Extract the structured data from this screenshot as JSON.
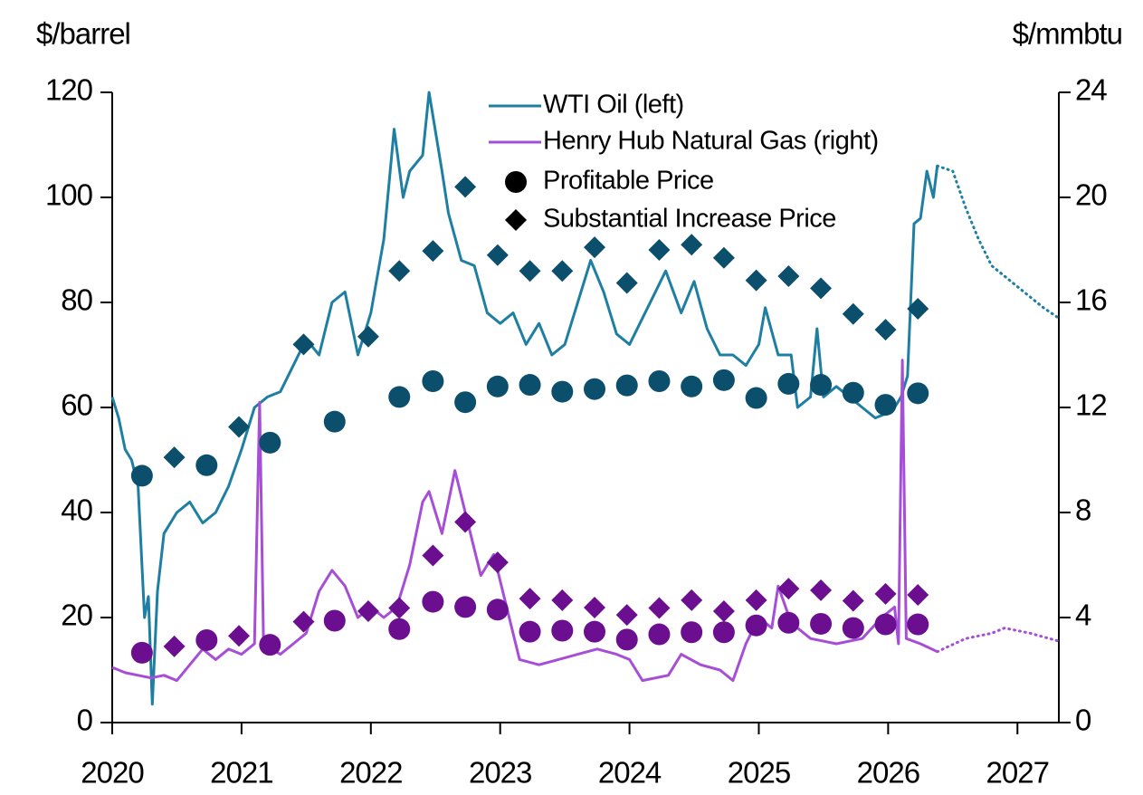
{
  "chart_data": {
    "type": "line",
    "y_label": "$/barrel",
    "y2_label": "$/mmbtu",
    "xlim": [
      2020,
      2027.32
    ],
    "xticks": [
      2020,
      2021,
      2022,
      2023,
      2024,
      2025,
      2026,
      2027
    ],
    "ylim": [
      0,
      120
    ],
    "yticks": [
      0,
      20,
      40,
      60,
      80,
      100,
      120
    ],
    "y2lim": [
      0,
      24
    ],
    "y2ticks": [
      0,
      4,
      8,
      12,
      16,
      20,
      24
    ],
    "grid": false,
    "legend": "top-center",
    "series": [
      {
        "name": "WTI Oil (left)",
        "color": "#1f7fa3",
        "axis": "y",
        "style": "solid",
        "x": [
          2020.0,
          2020.05,
          2020.1,
          2020.15,
          2020.2,
          2020.25,
          2020.28,
          2020.31,
          2020.35,
          2020.4,
          2020.5,
          2020.6,
          2020.7,
          2020.8,
          2020.9,
          2021.0,
          2021.1,
          2021.2,
          2021.3,
          2021.4,
          2021.5,
          2021.6,
          2021.7,
          2021.8,
          2021.9,
          2022.0,
          2022.1,
          2022.18,
          2022.25,
          2022.3,
          2022.4,
          2022.45,
          2022.55,
          2022.6,
          2022.7,
          2022.8,
          2022.9,
          2023.0,
          2023.1,
          2023.2,
          2023.3,
          2023.4,
          2023.5,
          2023.6,
          2023.7,
          2023.8,
          2023.9,
          2024.0,
          2024.1,
          2024.2,
          2024.28,
          2024.4,
          2024.5,
          2024.6,
          2024.7,
          2024.8,
          2024.9,
          2025.0,
          2025.05,
          2025.15,
          2025.25,
          2025.3,
          2025.4,
          2025.45,
          2025.5,
          2025.6,
          2025.7,
          2025.8,
          2025.9,
          2026.0,
          2026.05,
          2026.1,
          2026.15,
          2026.2,
          2026.25,
          2026.3,
          2026.35,
          2026.38
        ],
        "values": [
          62,
          58,
          52,
          50,
          45,
          20,
          24,
          3.5,
          25,
          36,
          40,
          42,
          38,
          40,
          45,
          52,
          60,
          62,
          63,
          68,
          73,
          70,
          80,
          82,
          70,
          78,
          92,
          113,
          100,
          105,
          108,
          120,
          105,
          97,
          88,
          87,
          78,
          76,
          78,
          72,
          76,
          70,
          72,
          80,
          88,
          82,
          74,
          72,
          77,
          82,
          86,
          78,
          84,
          75,
          70,
          70,
          68,
          72,
          79,
          70,
          70,
          60,
          62,
          75,
          62,
          64,
          62,
          60,
          58,
          59,
          60,
          62,
          66,
          95,
          96,
          105,
          100,
          106
        ]
      },
      {
        "name": "Henry Hub Natural Gas (right)",
        "color": "#a64fd6",
        "axis": "y2",
        "style": "solid",
        "x": [
          2020.0,
          2020.1,
          2020.2,
          2020.3,
          2020.4,
          2020.5,
          2020.6,
          2020.7,
          2020.8,
          2020.9,
          2021.0,
          2021.1,
          2021.14,
          2021.17,
          2021.3,
          2021.4,
          2021.5,
          2021.6,
          2021.7,
          2021.8,
          2021.9,
          2022.0,
          2022.1,
          2022.2,
          2022.3,
          2022.4,
          2022.45,
          2022.55,
          2022.65,
          2022.75,
          2022.85,
          2022.95,
          2023.05,
          2023.15,
          2023.3,
          2023.45,
          2023.6,
          2023.75,
          2023.9,
          2024.0,
          2024.1,
          2024.3,
          2024.4,
          2024.55,
          2024.7,
          2024.8,
          2024.9,
          2025.0,
          2025.1,
          2025.15,
          2025.25,
          2025.4,
          2025.6,
          2025.8,
          2025.95,
          2026.05,
          2026.08,
          2026.11,
          2026.14,
          2026.25,
          2026.38
        ],
        "values": [
          2.1,
          1.9,
          1.8,
          1.7,
          1.8,
          1.6,
          2.2,
          2.8,
          2.4,
          2.8,
          2.6,
          3.0,
          12.2,
          3.0,
          2.6,
          3.0,
          3.4,
          5.0,
          5.8,
          5.2,
          4.0,
          4.4,
          4.0,
          4.4,
          6.0,
          8.4,
          8.8,
          7.2,
          9.6,
          7.6,
          5.6,
          6.4,
          4.4,
          2.4,
          2.2,
          2.4,
          2.6,
          2.8,
          2.6,
          2.4,
          1.6,
          1.8,
          2.6,
          2.2,
          2.0,
          1.6,
          3.0,
          4.0,
          3.6,
          5.2,
          3.8,
          3.2,
          3.0,
          3.2,
          4.0,
          4.4,
          3.0,
          13.8,
          3.2,
          3.0,
          2.7
        ]
      },
      {
        "color": "#1f7fa3",
        "axis": "y",
        "style": "dotted",
        "x": [
          2026.38,
          2026.5,
          2026.6,
          2026.7,
          2026.8,
          2026.9,
          2027.0,
          2027.1,
          2027.2,
          2027.32
        ],
        "values": [
          106,
          105,
          98,
          92,
          87,
          85,
          83,
          81,
          79,
          77
        ]
      },
      {
        "color": "#a64fd6",
        "axis": "y2",
        "style": "dotted",
        "x": [
          2026.38,
          2026.6,
          2026.8,
          2026.9,
          2027.1,
          2027.32
        ],
        "values": [
          2.7,
          3.2,
          3.4,
          3.6,
          3.4,
          3.1
        ]
      }
    ],
    "markers": [
      {
        "name": "Profitable Price",
        "shape": "circle",
        "legend_color": "#000000",
        "groups": [
          {
            "axis": "y",
            "color": "#0b4f6c",
            "x": [
              2020.23,
              2020.73,
              2021.22,
              2021.72,
              2022.22,
              2022.48,
              2022.73,
              2022.98,
              2023.23,
              2023.48,
              2023.73,
              2023.98,
              2024.23,
              2024.48,
              2024.73,
              2024.98,
              2025.23,
              2025.48,
              2025.73,
              2025.98,
              2026.23
            ],
            "values": [
              47,
              49,
              53.3,
              57.3,
              62,
              65,
              61,
              64,
              64.3,
              63,
              63.5,
              64.2,
              65,
              64,
              65.2,
              61.8,
              64.5,
              64.3,
              62.8,
              60.5,
              62.7
            ]
          },
          {
            "axis": "y2",
            "color": "#6b0e8f",
            "x": [
              2020.23,
              2020.73,
              2021.22,
              2021.72,
              2022.22,
              2022.48,
              2022.73,
              2022.98,
              2023.23,
              2023.48,
              2023.73,
              2023.98,
              2024.23,
              2024.48,
              2024.73,
              2024.98,
              2025.23,
              2025.48,
              2025.73,
              2025.98,
              2026.23
            ],
            "values": [
              2.66,
              3.14,
              2.96,
              3.88,
              3.56,
              4.6,
              4.4,
              4.3,
              3.46,
              3.5,
              3.46,
              3.16,
              3.36,
              3.44,
              3.44,
              3.7,
              3.8,
              3.76,
              3.6,
              3.74,
              3.74
            ]
          }
        ]
      },
      {
        "name": "Substantial Increase Price",
        "shape": "diamond",
        "legend_color": "#000000",
        "groups": [
          {
            "axis": "y",
            "color": "#0b4f6c",
            "x": [
              2020.48,
              2020.98,
              2021.48,
              2021.98,
              2022.22,
              2022.48,
              2022.73,
              2022.98,
              2023.23,
              2023.48,
              2023.73,
              2023.98,
              2024.23,
              2024.48,
              2024.73,
              2024.98,
              2025.23,
              2025.48,
              2025.73,
              2025.98,
              2026.23
            ],
            "values": [
              50.5,
              56.3,
              72,
              73.5,
              86,
              89.8,
              102,
              89,
              86,
              86,
              90.5,
              83.7,
              90,
              91,
              88.5,
              84.2,
              85,
              82.7,
              77.8,
              74.8,
              78.8
            ]
          },
          {
            "axis": "y2",
            "color": "#6b0e8f",
            "x": [
              2020.48,
              2020.98,
              2021.48,
              2021.98,
              2022.22,
              2022.48,
              2022.73,
              2022.98,
              2023.23,
              2023.48,
              2023.73,
              2023.98,
              2024.23,
              2024.48,
              2024.73,
              2024.98,
              2025.23,
              2025.48,
              2025.73,
              2025.98,
              2026.23
            ],
            "values": [
              2.9,
              3.3,
              3.84,
              4.24,
              4.36,
              6.36,
              7.64,
              6.1,
              4.72,
              4.66,
              4.38,
              4.1,
              4.36,
              4.66,
              4.24,
              4.66,
              5.1,
              5.04,
              4.64,
              4.9,
              4.86
            ]
          }
        ]
      }
    ]
  }
}
